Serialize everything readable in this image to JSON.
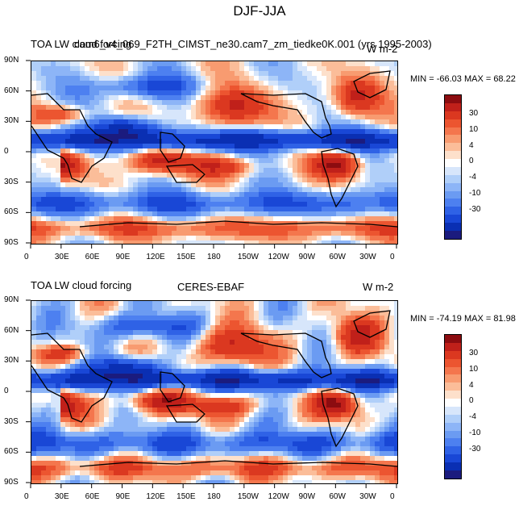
{
  "figure": {
    "title": "DJF-JJA"
  },
  "panels": [
    {
      "left_title": "TOA LW cloud forcing",
      "center_title": "cam6_v4_069_F2TH_CIMST_ne30.cam7_zm_tiedke0K.001 (yrs 1995-2003)",
      "right_title": "W m-2",
      "min_max": "MIN = -66.03  MAX =  68.22"
    },
    {
      "left_title": "TOA LW cloud forcing",
      "center_title": "CERES-EBAF",
      "right_title": "W m-2",
      "min_max": "MIN = -74.19  MAX =  81.98"
    }
  ],
  "colors": {
    "scale": [
      "#1b1b7e",
      "#0a2fb3",
      "#1947d6",
      "#2f62e6",
      "#4d80f0",
      "#6b9bf2",
      "#8db5f7",
      "#b0cff9",
      "#d7e6fb",
      "#ffffff",
      "#fde0cb",
      "#fbbd99",
      "#f89b70",
      "#f4764d",
      "#ec5530",
      "#db3820",
      "#c0201a",
      "#8c0c10"
    ],
    "land": "#000000"
  },
  "chart_data": [
    {
      "type": "heatmap",
      "title": "DJF-JJA",
      "subtitle": "cam6_v4_069_F2TH_CIMST_ne30.cam7_zm_tiedke0K.001 (yrs 1995-2003)",
      "variable": "TOA LW cloud forcing",
      "units": "W m-2",
      "x_ticks": [
        "0",
        "30E",
        "60E",
        "90E",
        "120E",
        "150E",
        "180",
        "150W",
        "120W",
        "90W",
        "60W",
        "30W",
        "0"
      ],
      "y_ticks": [
        "90N",
        "60N",
        "30N",
        "0",
        "30S",
        "60S",
        "90S"
      ],
      "colorbar_labels": [
        "30",
        "10",
        "4",
        "0",
        "-4",
        "-10",
        "-30"
      ],
      "min": -66.03,
      "max": 68.22
    },
    {
      "type": "heatmap",
      "title": "DJF-JJA",
      "subtitle": "CERES-EBAF",
      "variable": "TOA LW cloud forcing",
      "units": "W m-2",
      "x_ticks": [
        "0",
        "30E",
        "60E",
        "90E",
        "120E",
        "150E",
        "180",
        "150W",
        "120W",
        "90W",
        "60W",
        "30W",
        "0"
      ],
      "y_ticks": [
        "90N",
        "60N",
        "30N",
        "0",
        "30S",
        "60S",
        "90S"
      ],
      "colorbar_labels": [
        "30",
        "10",
        "4",
        "0",
        "-4",
        "-10",
        "-30"
      ],
      "min": -74.19,
      "max": 81.98
    }
  ]
}
